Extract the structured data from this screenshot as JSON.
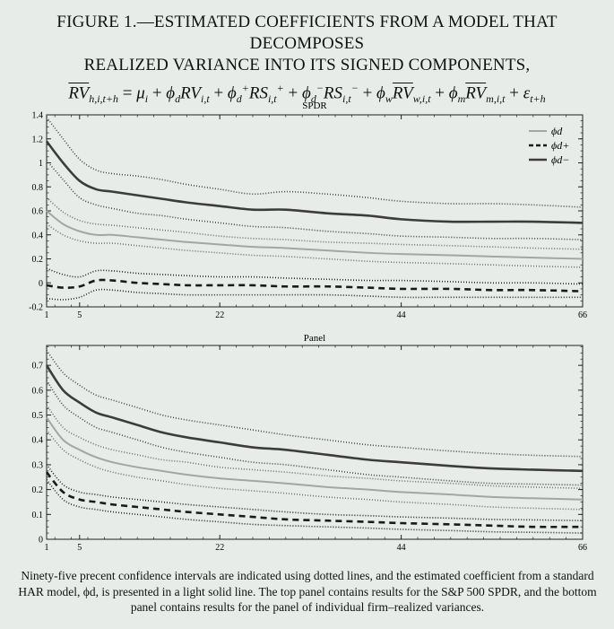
{
  "title": {
    "line1": "FIGURE 1.—ESTIMATED COEFFICIENTS FROM A MODEL THAT DECOMPOSES",
    "line2": "REALIZED VARIANCE INTO ITS SIGNED COMPONENTS,",
    "formula": "RV̄h,i,t+h = μi + ϕdRVi,t + ϕd+RSi,t+ + ϕd−RSi,t− + ϕwRV̄w,i,t + ϕmRV̄m,i,t + εt+h"
  },
  "caption": "Ninety-five precent confidence intervals are indicated using dotted lines, and the estimated coefficient from a standard HAR model, ϕd, is presented in a light solid line. The top panel contains results for the S&P 500 SPDR, and the bottom panel contains results for the panel of individual firm–realized variances.",
  "legend": [
    "ϕd",
    "ϕd+",
    "ϕd−"
  ],
  "colors": {
    "har": "#a4a6a4",
    "positive": "#1a1a1a",
    "negative": "#3c3c3c",
    "background": "#e8ece9"
  },
  "chart_data": [
    {
      "type": "line",
      "title": "SPDR",
      "xlim": [
        1,
        66
      ],
      "ylim": [
        -0.2,
        1.4
      ],
      "xticks": [
        1,
        5,
        22,
        44,
        66
      ],
      "yticks": [
        "-0.2",
        "0",
        "0.2",
        "0.4",
        "0.6",
        "0.8",
        "1",
        "1.2",
        "1.4"
      ],
      "grid": false,
      "legend_position": "top-right",
      "x": [
        1,
        3,
        5,
        7,
        9,
        12,
        15,
        18,
        22,
        26,
        30,
        35,
        40,
        44,
        50,
        55,
        60,
        66
      ],
      "series": [
        {
          "name": "ϕd",
          "role": "har",
          "style": "solid-light",
          "values": [
            0.6,
            0.49,
            0.43,
            0.4,
            0.4,
            0.38,
            0.36,
            0.34,
            0.32,
            0.3,
            0.29,
            0.27,
            0.25,
            0.24,
            0.23,
            0.22,
            0.21,
            0.2
          ]
        },
        {
          "name": "ϕd+",
          "role": "positive",
          "style": "dashed",
          "values": [
            -0.02,
            -0.04,
            -0.03,
            0.02,
            0.02,
            0.0,
            -0.01,
            -0.02,
            -0.02,
            -0.02,
            -0.03,
            -0.03,
            -0.04,
            -0.05,
            -0.05,
            -0.06,
            -0.06,
            -0.07
          ]
        },
        {
          "name": "ϕd−",
          "role": "negative",
          "style": "solid-dark",
          "values": [
            1.18,
            1.0,
            0.85,
            0.78,
            0.76,
            0.73,
            0.7,
            0.67,
            0.64,
            0.61,
            0.61,
            0.58,
            0.56,
            0.53,
            0.51,
            0.51,
            0.51,
            0.5
          ]
        },
        {
          "role": "har-ci",
          "style": "dotted",
          "bound": "upper",
          "values": [
            0.71,
            0.59,
            0.52,
            0.49,
            0.48,
            0.46,
            0.44,
            0.42,
            0.39,
            0.37,
            0.36,
            0.34,
            0.33,
            0.32,
            0.31,
            0.3,
            0.29,
            0.28
          ]
        },
        {
          "role": "har-ci",
          "style": "dotted",
          "bound": "lower",
          "values": [
            0.49,
            0.4,
            0.35,
            0.33,
            0.33,
            0.31,
            0.29,
            0.27,
            0.25,
            0.23,
            0.22,
            0.2,
            0.18,
            0.17,
            0.16,
            0.15,
            0.14,
            0.13
          ]
        },
        {
          "role": "positive-ci",
          "style": "dotted",
          "bound": "upper",
          "values": [
            0.12,
            0.07,
            0.05,
            0.1,
            0.1,
            0.08,
            0.07,
            0.06,
            0.05,
            0.05,
            0.04,
            0.03,
            0.02,
            0.02,
            0.01,
            0.0,
            0.0,
            -0.01
          ]
        },
        {
          "role": "positive-ci",
          "style": "dotted",
          "bound": "lower",
          "values": [
            -0.13,
            -0.14,
            -0.12,
            -0.06,
            -0.06,
            -0.08,
            -0.09,
            -0.1,
            -0.1,
            -0.1,
            -0.1,
            -0.1,
            -0.11,
            -0.12,
            -0.12,
            -0.12,
            -0.12,
            -0.12
          ]
        },
        {
          "role": "negative-ci",
          "style": "dotted",
          "bound": "upper",
          "values": [
            1.38,
            1.2,
            1.03,
            0.94,
            0.91,
            0.89,
            0.86,
            0.82,
            0.78,
            0.74,
            0.76,
            0.74,
            0.71,
            0.68,
            0.66,
            0.66,
            0.65,
            0.63
          ]
        },
        {
          "role": "negative-ci",
          "style": "dotted",
          "bound": "lower",
          "values": [
            1.02,
            0.86,
            0.71,
            0.65,
            0.62,
            0.58,
            0.56,
            0.53,
            0.5,
            0.47,
            0.46,
            0.43,
            0.41,
            0.39,
            0.38,
            0.37,
            0.37,
            0.36
          ]
        }
      ]
    },
    {
      "type": "line",
      "title": "Panel",
      "xlim": [
        1,
        66
      ],
      "ylim": [
        0,
        0.78
      ],
      "xticks": [
        1,
        5,
        22,
        44,
        66
      ],
      "yticks": [
        "0",
        "0.1",
        "0.2",
        "0.3",
        "0.4",
        "0.5",
        "0.6",
        "0.7"
      ],
      "grid": false,
      "x": [
        1,
        3,
        5,
        7,
        9,
        12,
        15,
        18,
        22,
        26,
        30,
        35,
        40,
        44,
        50,
        55,
        60,
        66
      ],
      "series": [
        {
          "name": "ϕd",
          "role": "har",
          "style": "solid-light",
          "values": [
            0.49,
            0.4,
            0.36,
            0.33,
            0.31,
            0.29,
            0.275,
            0.26,
            0.245,
            0.235,
            0.225,
            0.21,
            0.2,
            0.19,
            0.18,
            0.17,
            0.165,
            0.16
          ]
        },
        {
          "name": "ϕd+",
          "role": "positive",
          "style": "dashed",
          "values": [
            0.27,
            0.19,
            0.16,
            0.15,
            0.14,
            0.13,
            0.12,
            0.11,
            0.1,
            0.09,
            0.08,
            0.075,
            0.07,
            0.065,
            0.06,
            0.055,
            0.05,
            0.05
          ]
        },
        {
          "name": "ϕd−",
          "role": "negative",
          "style": "solid-dark",
          "values": [
            0.7,
            0.6,
            0.55,
            0.51,
            0.49,
            0.46,
            0.43,
            0.41,
            0.39,
            0.37,
            0.36,
            0.34,
            0.32,
            0.31,
            0.295,
            0.285,
            0.28,
            0.275
          ]
        },
        {
          "role": "har-ci",
          "style": "dotted",
          "bound": "upper",
          "values": [
            0.54,
            0.45,
            0.41,
            0.38,
            0.36,
            0.34,
            0.32,
            0.31,
            0.29,
            0.28,
            0.27,
            0.255,
            0.245,
            0.235,
            0.225,
            0.215,
            0.21,
            0.205
          ]
        },
        {
          "role": "har-ci",
          "style": "dotted",
          "bound": "lower",
          "values": [
            0.44,
            0.36,
            0.32,
            0.29,
            0.27,
            0.25,
            0.235,
            0.22,
            0.205,
            0.195,
            0.185,
            0.17,
            0.16,
            0.15,
            0.14,
            0.13,
            0.125,
            0.12
          ]
        },
        {
          "role": "positive-ci",
          "style": "dotted",
          "bound": "upper",
          "values": [
            0.3,
            0.22,
            0.19,
            0.18,
            0.17,
            0.16,
            0.15,
            0.14,
            0.13,
            0.12,
            0.11,
            0.1,
            0.095,
            0.09,
            0.085,
            0.08,
            0.078,
            0.075
          ]
        },
        {
          "role": "positive-ci",
          "style": "dotted",
          "bound": "lower",
          "values": [
            0.24,
            0.16,
            0.13,
            0.12,
            0.11,
            0.1,
            0.09,
            0.08,
            0.07,
            0.06,
            0.055,
            0.05,
            0.045,
            0.04,
            0.035,
            0.03,
            0.028,
            0.025
          ]
        },
        {
          "role": "negative-ci",
          "style": "dotted",
          "bound": "upper",
          "values": [
            0.76,
            0.67,
            0.62,
            0.58,
            0.56,
            0.53,
            0.5,
            0.48,
            0.46,
            0.44,
            0.42,
            0.4,
            0.38,
            0.37,
            0.355,
            0.345,
            0.338,
            0.333
          ]
        },
        {
          "role": "negative-ci",
          "style": "dotted",
          "bound": "lower",
          "values": [
            0.64,
            0.54,
            0.49,
            0.45,
            0.43,
            0.4,
            0.37,
            0.35,
            0.33,
            0.31,
            0.3,
            0.28,
            0.26,
            0.25,
            0.235,
            0.225,
            0.222,
            0.218
          ]
        }
      ]
    }
  ]
}
